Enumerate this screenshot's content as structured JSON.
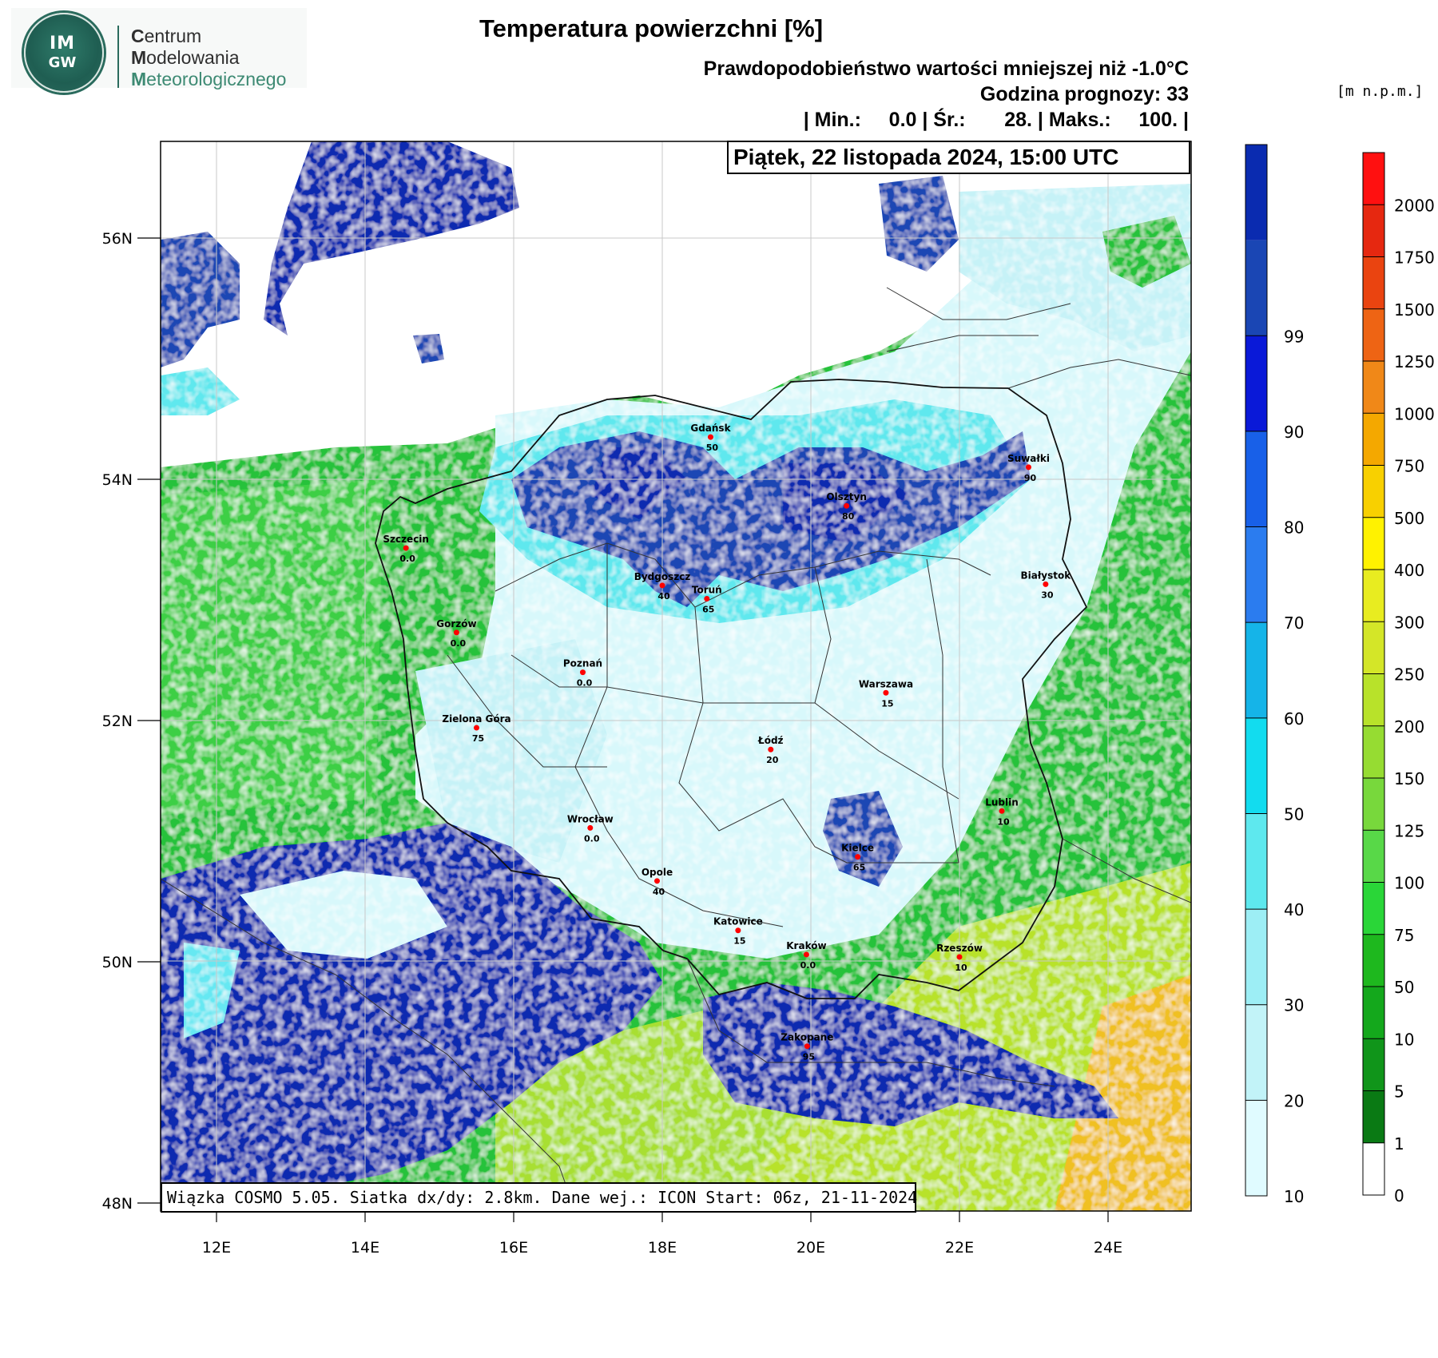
{
  "logo": {
    "circle_text": "IM",
    "circle_sub": "GW",
    "line1_initial": "C",
    "line1_rest": "entrum",
    "line2_initial": "M",
    "line2_rest": "odelowania",
    "line3_initial": "M",
    "line3_rest": "eteorologicznego"
  },
  "header": {
    "title": "Temperatura powierzchni [%]",
    "subtitle": "Prawdopodobieństwo wartości mniejszej niż -1.0°C",
    "forecast_hour": "Godzina prognozy: 33",
    "stats": "| Min.:     0.0 | Śr.:       28. | Maks.:     100. |",
    "date": "Piątek, 22 listopada 2024, 15:00 UTC"
  },
  "footer": "Wiązka COSMO 5.05. Siatka dx/dy: 2.8km. Dane wej.: ICON Start: 06z, 21-11-2024",
  "elevation_unit": "[m n.p.m.]",
  "map_axes": {
    "lat_labels": [
      "56N",
      "54N",
      "52N",
      "50N",
      "48N"
    ],
    "lat_values": [
      56,
      54,
      52,
      50,
      48
    ],
    "lon_labels": [
      "12E",
      "14E",
      "16E",
      "18E",
      "20E",
      "22E",
      "24E"
    ],
    "lon_values": [
      12,
      14,
      16,
      18,
      20,
      22,
      24
    ]
  },
  "prob_scale": {
    "labels": [
      "10",
      "20",
      "30",
      "40",
      "50",
      "60",
      "70",
      "80",
      "90",
      "99"
    ],
    "colors": [
      "#e0fbff",
      "#c2f3f8",
      "#9deef5",
      "#5ee8ee",
      "#12dcef",
      "#15b4e8",
      "#2b7cef",
      "#1860e8",
      "#0a19d8",
      "#1a46b4",
      "#0a2bb0"
    ]
  },
  "elev_scale": {
    "labels": [
      "0",
      "1",
      "5",
      "10",
      "50",
      "75",
      "100",
      "125",
      "150",
      "200",
      "250",
      "300",
      "400",
      "500",
      "750",
      "1000",
      "1250",
      "1500",
      "1750",
      "2000"
    ],
    "colors": [
      "#ffffff",
      "#0a7a14",
      "#10951a",
      "#14a81c",
      "#1eb81e",
      "#2ad638",
      "#58d848",
      "#78d83c",
      "#96dc32",
      "#b8e22a",
      "#d4e628",
      "#e8ec20",
      "#fff200",
      "#f8d000",
      "#f4a800",
      "#f08818",
      "#ee6414",
      "#ea4410",
      "#e62810",
      "#ff1010"
    ]
  },
  "cities": [
    {
      "name": "Gdańsk",
      "value": "50",
      "lon": 18.65,
      "lat": 54.35
    },
    {
      "name": "Suwałki",
      "value": "90",
      "lon": 22.93,
      "lat": 54.1
    },
    {
      "name": "Olsztyn",
      "value": "80",
      "lon": 20.48,
      "lat": 53.78
    },
    {
      "name": "Szczecin",
      "value": "0.0",
      "lon": 14.55,
      "lat": 53.43
    },
    {
      "name": "Białystok",
      "value": "30",
      "lon": 23.16,
      "lat": 53.13
    },
    {
      "name": "Bydgoszcz",
      "value": "40",
      "lon": 18.0,
      "lat": 53.12
    },
    {
      "name": "Toruń",
      "value": "65",
      "lon": 18.6,
      "lat": 53.01
    },
    {
      "name": "Gorzów",
      "value": "0.0",
      "lon": 15.23,
      "lat": 52.73
    },
    {
      "name": "Poznań",
      "value": "0.0",
      "lon": 16.93,
      "lat": 52.4
    },
    {
      "name": "Warszawa",
      "value": "15",
      "lon": 21.01,
      "lat": 52.23
    },
    {
      "name": "Zielona Góra",
      "value": "75",
      "lon": 15.5,
      "lat": 51.94
    },
    {
      "name": "Łódź",
      "value": "20",
      "lon": 19.46,
      "lat": 51.76
    },
    {
      "name": "Lublin",
      "value": "10",
      "lon": 22.57,
      "lat": 51.25
    },
    {
      "name": "Wrocław",
      "value": "0.0",
      "lon": 17.03,
      "lat": 51.11
    },
    {
      "name": "Kielce",
      "value": "65",
      "lon": 20.63,
      "lat": 50.87
    },
    {
      "name": "Opole",
      "value": "40",
      "lon": 17.93,
      "lat": 50.67
    },
    {
      "name": "Katowice",
      "value": "15",
      "lon": 19.02,
      "lat": 50.26
    },
    {
      "name": "Kraków",
      "value": "0.0",
      "lon": 19.94,
      "lat": 50.06
    },
    {
      "name": "Rzeszów",
      "value": "10",
      "lon": 22.0,
      "lat": 50.04
    },
    {
      "name": "Zakopane",
      "value": "95",
      "lon": 19.95,
      "lat": 49.3
    }
  ]
}
